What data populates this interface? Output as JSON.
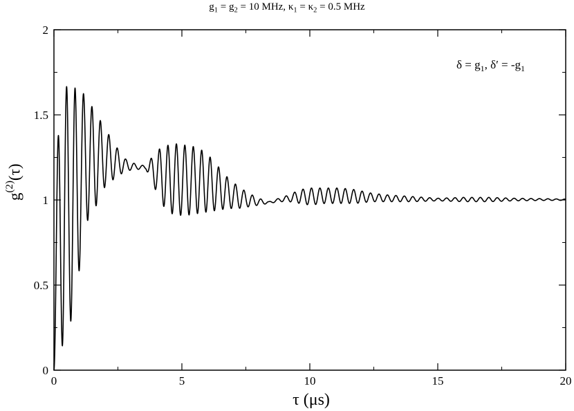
{
  "title": {
    "g_sym": "g",
    "g_sub1": "1",
    "eq1": " = ",
    "g_sub2": "2",
    "value1": " = 10 MHz, ",
    "kappa_sym": "κ",
    "k_sub1": "1",
    "k_sub2": "2",
    "value2": " = 0.5 MHz"
  },
  "annotation": {
    "delta": "δ = g",
    "delta_sub": "1",
    "delta_prime": ", δ′ = -g",
    "delta_prime_sub": "1"
  },
  "xlabel": {
    "text": "τ (μs)"
  },
  "ylabel": {
    "base": "g",
    "sup": "(2)",
    "arg": "(τ)"
  },
  "chart_data": {
    "type": "line",
    "title": "g1 = g2 = 10 MHz, κ1 = κ2 = 0.5 MHz",
    "xlabel": "τ (μs)",
    "ylabel": "g(2)(τ)",
    "xlim": [
      0,
      20
    ],
    "ylim": [
      0,
      2
    ],
    "xticks": [
      0,
      5,
      10,
      15,
      20
    ],
    "xtick_labels": [
      "0",
      "5",
      "10",
      "15",
      "20"
    ],
    "yticks": [
      0,
      0.5,
      1,
      1.5,
      2
    ],
    "ytick_labels": [
      "0",
      "0.5",
      "1",
      "1.5",
      "2"
    ],
    "grid": false,
    "series": [
      {
        "color": "#000000",
        "envelope": {
          "x": [
            0,
            0.3,
            0.8,
            1.2,
            1.6,
            2.0,
            2.4,
            2.8,
            3.2,
            3.6,
            4.0,
            4.4,
            4.8,
            5.2,
            5.6,
            6.0,
            6.4,
            6.8,
            7.2,
            7.6,
            8.0,
            8.4,
            8.8,
            9.2,
            9.6,
            10.0,
            10.6,
            11.2,
            11.8,
            12.4,
            13.0,
            14.0,
            15.0,
            16.0,
            17.0,
            18.0,
            19.0,
            20.0
          ],
          "y_upper": [
            1.0,
            1.67,
            1.66,
            1.62,
            1.52,
            1.42,
            1.32,
            1.24,
            1.21,
            1.2,
            1.29,
            1.32,
            1.33,
            1.32,
            1.31,
            1.27,
            1.2,
            1.13,
            1.08,
            1.04,
            1.01,
            0.99,
            1.01,
            1.03,
            1.06,
            1.07,
            1.07,
            1.07,
            1.06,
            1.04,
            1.03,
            1.02,
            1.01,
            1.015,
            1.015,
            1.01,
            1.008,
            1.005
          ],
          "y_lower": [
            0.0,
            0.13,
            0.35,
            0.85,
            0.95,
            1.08,
            1.13,
            1.17,
            1.18,
            1.18,
            1.05,
            0.93,
            0.91,
            0.91,
            0.92,
            0.93,
            0.94,
            0.95,
            0.95,
            0.96,
            0.97,
            0.98,
            0.99,
            0.99,
            0.98,
            0.97,
            0.98,
            0.98,
            0.98,
            0.99,
            0.99,
            0.99,
            0.995,
            0.99,
            0.99,
            0.995,
            0.997,
            0.998
          ]
        },
        "oscillation_period_us": 0.33
      }
    ]
  }
}
